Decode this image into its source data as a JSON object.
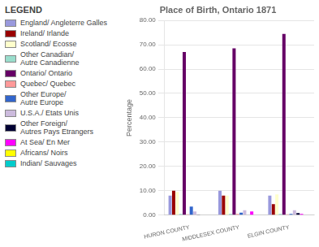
{
  "chart_data": {
    "type": "bar",
    "title": "Place of Birth, Ontario 1871",
    "ylabel": "Percentage",
    "categories": [
      "HURON COUNTY",
      "MIDDLESEX COUNTY",
      "ELGIN COUNTY"
    ],
    "series": [
      {
        "name": "England/ Angleterre Galles",
        "color": "#9999dd",
        "values": [
          8.0,
          10.0,
          8.0
        ]
      },
      {
        "name": "Ireland/ Irlande",
        "color": "#990000",
        "values": [
          10.0,
          8.0,
          4.5
        ]
      },
      {
        "name": "Scotland/ Ecosse",
        "color": "#ffffcc",
        "values": [
          9.5,
          8.0,
          8.5
        ]
      },
      {
        "name": "Other Canadian/\nAutre Canadienne",
        "color": "#99ddcc",
        "values": [
          0.5,
          0.5,
          0.5
        ]
      },
      {
        "name": "Ontario/ Ontario",
        "color": "#660066",
        "values": [
          67.0,
          68.5,
          74.5
        ]
      },
      {
        "name": "Quebec/ Quebec",
        "color": "#ff9999",
        "values": [
          0.3,
          0.5,
          0.3
        ]
      },
      {
        "name": "Other Europe/\nAutre Europe",
        "color": "#3366cc",
        "values": [
          3.5,
          1.0,
          0.5
        ]
      },
      {
        "name": "U.S.A./ Etats Unis",
        "color": "#ccbbdd",
        "values": [
          1.5,
          2.0,
          2.0
        ]
      },
      {
        "name": "Other Foreign/\nAutres Pays Etrangers",
        "color": "#000033",
        "values": [
          0.2,
          0.1,
          0.8
        ]
      },
      {
        "name": "At Sea/ En Mer",
        "color": "#ff00ff",
        "values": [
          0.0,
          1.5,
          0.5
        ]
      },
      {
        "name": "Africans/ Noirs",
        "color": "#ffff00",
        "values": [
          0.0,
          0.0,
          0.0
        ]
      },
      {
        "name": "Indian/ Sauvages",
        "color": "#00cccc",
        "values": [
          0.1,
          0.1,
          0.1
        ]
      }
    ],
    "ylim": [
      0,
      80
    ],
    "yticks": [
      {
        "value": 0,
        "label": "0.00"
      },
      {
        "value": 10,
        "label": "10.00"
      },
      {
        "value": 20,
        "label": "20.00"
      },
      {
        "value": 30,
        "label": "30.00"
      },
      {
        "value": 40,
        "label": "40.00"
      },
      {
        "value": 50,
        "label": "50.00"
      },
      {
        "value": 60,
        "label": "60.00"
      },
      {
        "value": 70,
        "label": "70.00"
      },
      {
        "value": 80,
        "label": "80.00"
      }
    ],
    "grid": true,
    "legend": "left",
    "legend_title": "LEGEND"
  }
}
